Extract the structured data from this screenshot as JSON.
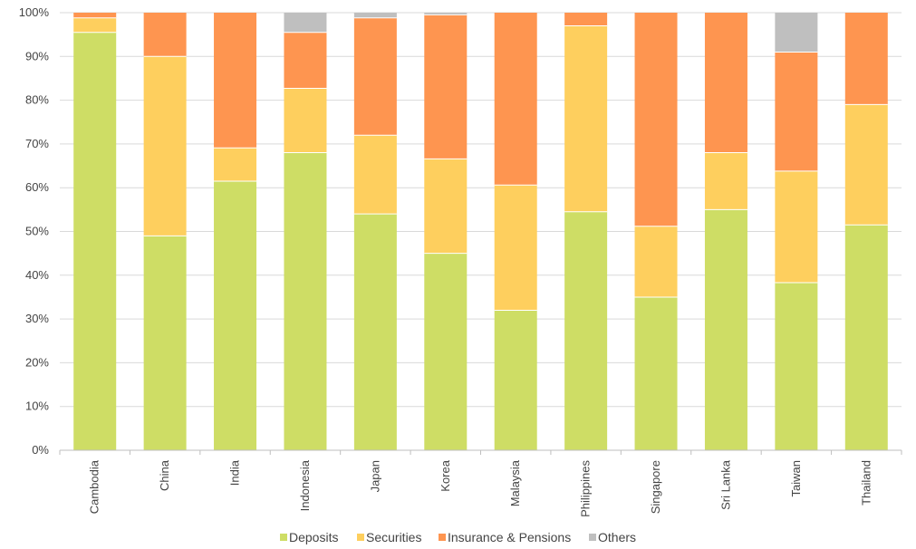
{
  "chart_data": {
    "type": "bar",
    "stacked": true,
    "percent_axis": true,
    "categories": [
      "Cambodia",
      "China",
      "India",
      "Indonesia",
      "Japan",
      "Korea",
      "Malaysia",
      "Philippines",
      "Singapore",
      "Sri Lanka",
      "Taiwan",
      "Thailand"
    ],
    "series": [
      {
        "name": "Deposits",
        "color": "#cedd65",
        "values": [
          95.5,
          49,
          61.5,
          68,
          54,
          45,
          32,
          54.5,
          35,
          55,
          38.3,
          51.5
        ]
      },
      {
        "name": "Securities",
        "color": "#fecf5e",
        "values": [
          3.3,
          41,
          7.6,
          14.7,
          18,
          21.6,
          28.6,
          42.5,
          16.2,
          13,
          25.5,
          27.5
        ]
      },
      {
        "name": "Insurance & Pensions",
        "color": "#fe9550",
        "values": [
          1.2,
          10,
          30.9,
          12.8,
          26.8,
          32.9,
          39.4,
          3,
          48.8,
          32,
          27.2,
          21
        ]
      },
      {
        "name": "Others",
        "color": "#bfbfbf",
        "values": [
          0,
          0,
          0,
          4.5,
          1.2,
          0.5,
          0,
          0,
          0,
          0,
          9,
          0
        ]
      }
    ],
    "yticks": [
      "0%",
      "10%",
      "20%",
      "30%",
      "40%",
      "50%",
      "60%",
      "70%",
      "80%",
      "90%",
      "100%"
    ],
    "ylim": [
      0,
      100
    ],
    "grid": true,
    "legend_position": "bottom",
    "title": "",
    "xlabel": "",
    "ylabel": ""
  }
}
